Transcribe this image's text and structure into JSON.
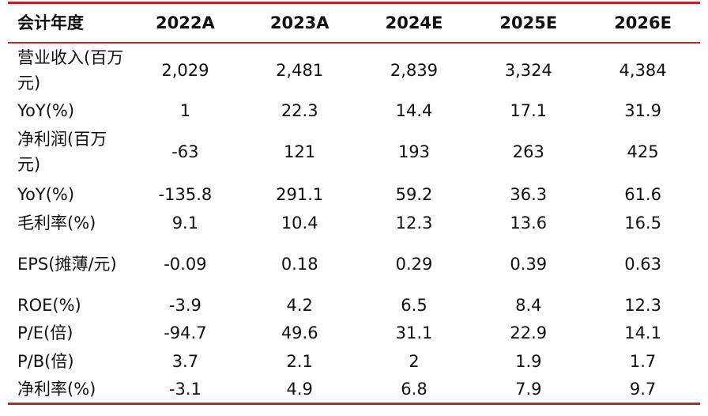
{
  "table": {
    "header": [
      "会计年度",
      "2022A",
      "2023A",
      "2024E",
      "2025E",
      "2026E"
    ],
    "rows": [
      [
        "营业收入(百万元)",
        "2,029",
        "2,481",
        "2,839",
        "3,324",
        "4,384"
      ],
      [
        "YoY(%)",
        "1",
        "22.3",
        "14.4",
        "17.1",
        "31.9"
      ],
      [
        "净利润(百万元)",
        "-63",
        "121",
        "193",
        "263",
        "425"
      ],
      [
        "YoY(%)",
        "-135.8",
        "291.1",
        "59.2",
        "36.3",
        "61.6"
      ],
      [
        "毛利率(%)",
        "9.1",
        "10.4",
        "12.3",
        "13.6",
        "16.5"
      ],
      [
        "EPS(摊薄/元)",
        "-0.09",
        "0.18",
        "0.29",
        "0.39",
        "0.63"
      ],
      [
        "ROE(%)",
        "-3.9",
        "4.2",
        "6.5",
        "8.4",
        "12.3"
      ],
      [
        "P/E(倍)",
        "-94.7",
        "49.6",
        "31.1",
        "22.9",
        "14.1"
      ],
      [
        "P/B(倍)",
        "3.7",
        "2.1",
        "2",
        "1.9",
        "1.7"
      ],
      [
        "净利率(%)",
        "-3.1",
        "4.9",
        "6.8",
        "7.9",
        "9.7"
      ]
    ]
  }
}
